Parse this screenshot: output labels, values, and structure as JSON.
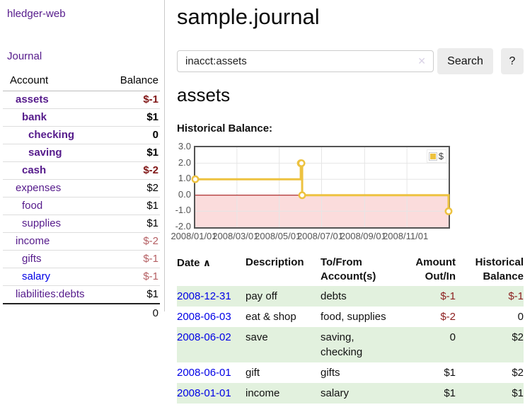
{
  "sidebar": {
    "brand": "hledger-web",
    "journal_label": "Journal",
    "accounts_table": {
      "headers": {
        "account": "Account",
        "balance": "Balance"
      },
      "rows": [
        {
          "name": "assets",
          "balance": "$-1"
        },
        {
          "name": "bank",
          "balance": "$1"
        },
        {
          "name": "checking",
          "balance": "0"
        },
        {
          "name": "saving",
          "balance": "$1"
        },
        {
          "name": "cash",
          "balance": "$-2"
        },
        {
          "name": "expenses",
          "balance": "$2"
        },
        {
          "name": "food",
          "balance": "$1"
        },
        {
          "name": "supplies",
          "balance": "$1"
        },
        {
          "name": "income",
          "balance": "$-2"
        },
        {
          "name": "gifts",
          "balance": "$-1"
        },
        {
          "name": "salary",
          "balance": "$-1"
        },
        {
          "name": "liabilities:debts",
          "balance": "$1"
        }
      ],
      "total": "0"
    }
  },
  "header": {
    "title": "sample.journal"
  },
  "search": {
    "value": "inacct:assets",
    "clear_icon": "✕",
    "button_label": "Search",
    "help_label": "?"
  },
  "account_page": {
    "heading": "assets",
    "chart_label": "Historical Balance:"
  },
  "chart_data": {
    "type": "line",
    "step": true,
    "title": "Historical Balance",
    "legend": "$",
    "legend_position": "top-right",
    "grid": true,
    "x_start": "2008-01-01",
    "x_span_days": 365,
    "ylim": [
      -2,
      3
    ],
    "yticks": [
      "3.0",
      "2.0",
      "1.0",
      "0.0",
      "-1.0",
      "-2.0"
    ],
    "xticks": [
      "2008/01/01",
      "2008/03/01",
      "2008/05/01",
      "2008/07/01",
      "2008/09/01",
      "2008/11/01"
    ],
    "series": [
      {
        "name": "$",
        "color": "#edc240",
        "points": [
          {
            "date": "2008-01-01",
            "value": 1
          },
          {
            "date": "2008-06-01",
            "value": 2
          },
          {
            "date": "2008-06-02",
            "value": 2
          },
          {
            "date": "2008-06-03",
            "value": 0
          },
          {
            "date": "2008-12-31",
            "value": -1
          }
        ]
      }
    ],
    "negative_region_color": "#fbdcdc",
    "zero_line_color": "#a00000",
    "gridline_color": "#e6e6e6"
  },
  "transactions": {
    "headers": {
      "date": "Date",
      "sort_indicator": "∧",
      "description": "Description",
      "accounts": "To/From Account(s)",
      "amount": "Amount Out/In",
      "balance": "Historical Balance"
    },
    "rows": [
      {
        "date": "2008-12-31",
        "description": "pay off",
        "accounts": "debts",
        "amount": "$-1",
        "balance": "$-1"
      },
      {
        "date": "2008-06-03",
        "description": "eat & shop",
        "accounts": "food, supplies",
        "amount": "$-2",
        "balance": "0"
      },
      {
        "date": "2008-06-02",
        "description": "save",
        "accounts": "saving, checking",
        "amount": "0",
        "balance": "$2"
      },
      {
        "date": "2008-06-01",
        "description": "gift",
        "accounts": "gifts",
        "amount": "$1",
        "balance": "$2"
      },
      {
        "date": "2008-01-01",
        "description": "income",
        "accounts": "salary",
        "amount": "$1",
        "balance": "$1"
      }
    ]
  }
}
